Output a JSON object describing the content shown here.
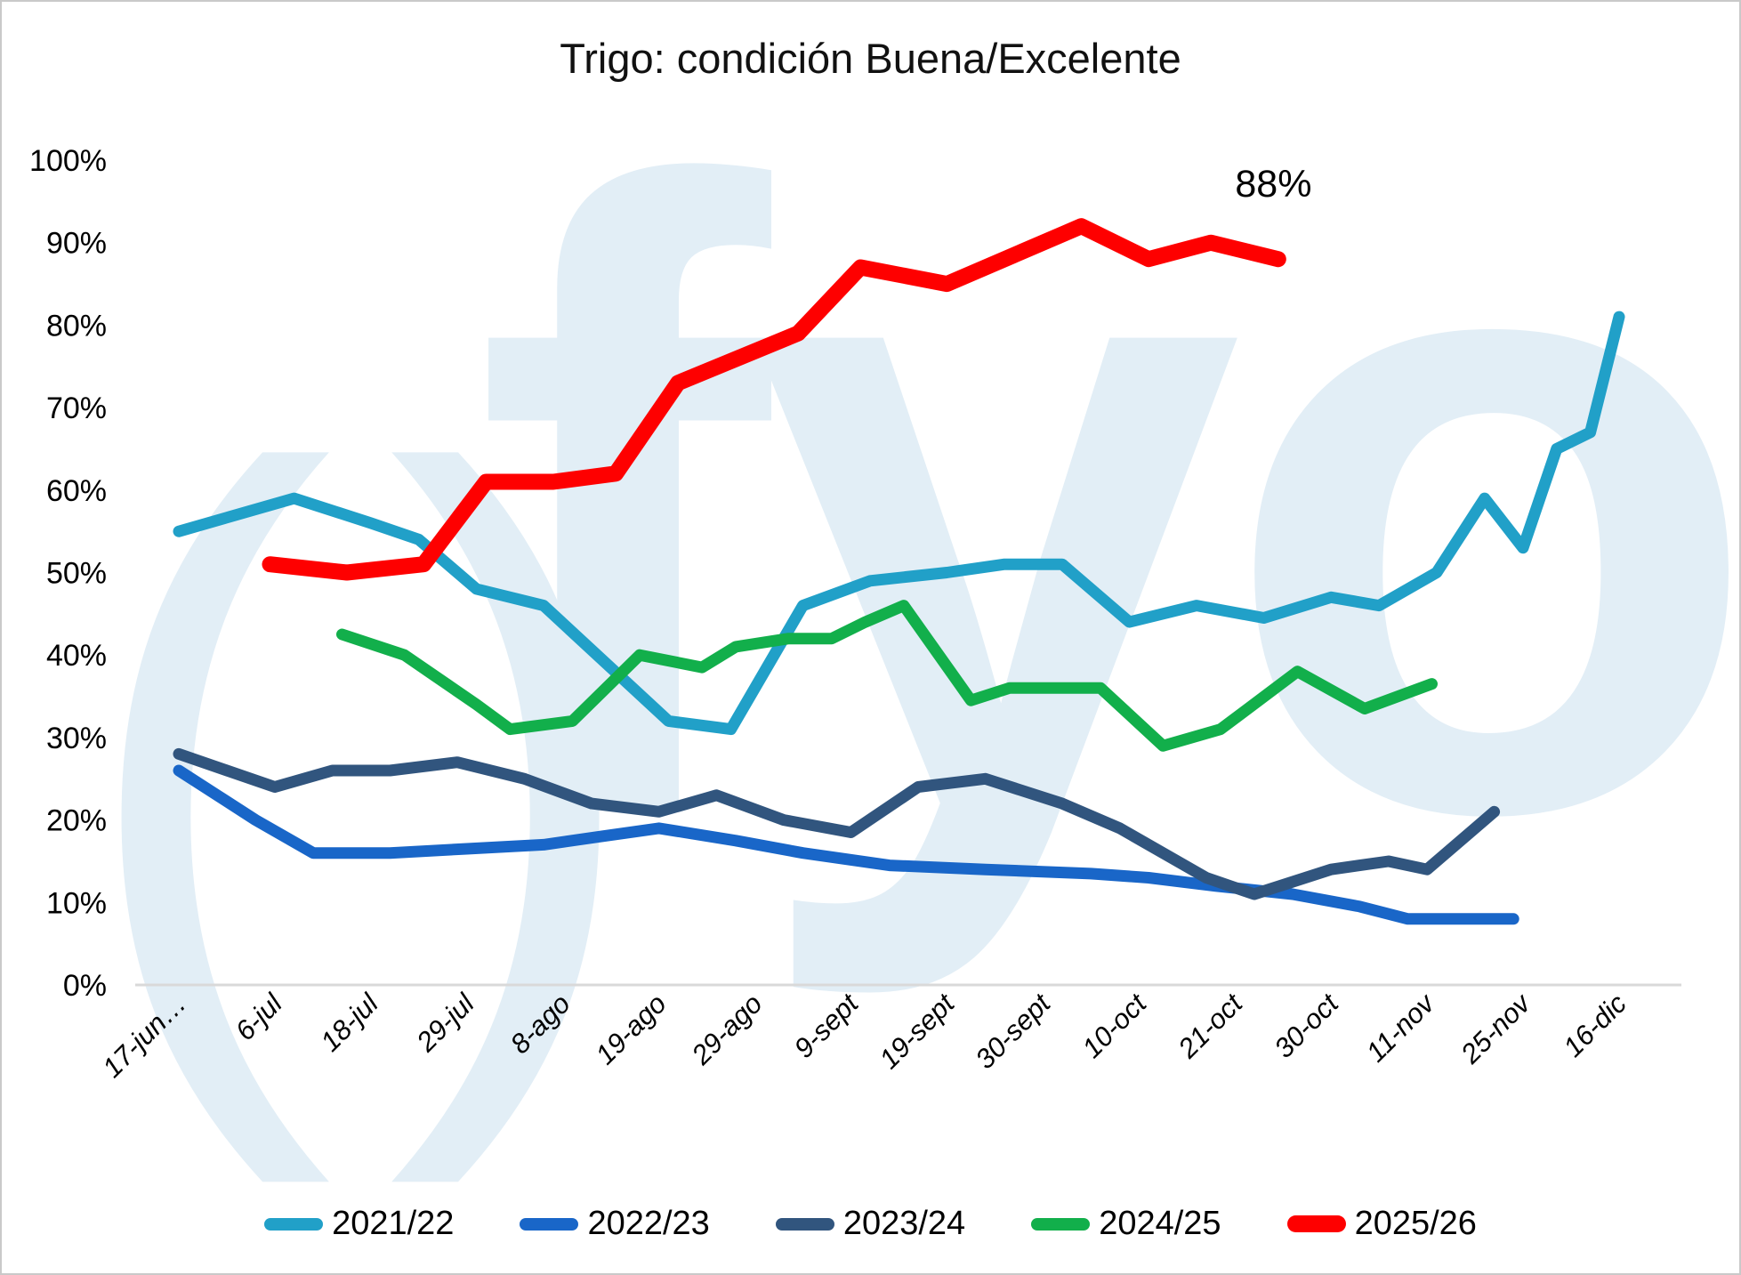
{
  "title": "Trigo: condición Buena/Excelente",
  "watermark": {
    "parens": "()",
    "text": "fyo",
    "color": "#E2EEF6"
  },
  "annotation": {
    "text": "88%",
    "idx": 11.4,
    "pct": 95.6
  },
  "colors": {
    "axis_line": "#D9D9D9",
    "text": "#000000",
    "s2021": "#21A0C8",
    "s2022": "#1966C8",
    "s2023": "#31557E",
    "s2024": "#12AF4B",
    "s2025": "#FE0000"
  },
  "chart_data": {
    "type": "line",
    "title": "Trigo: condición Buena/Excelente",
    "xlabel": "",
    "ylabel": "",
    "ylim": [
      0,
      100
    ],
    "y_tick_step": 10,
    "y_tick_labels": [
      "0%",
      "10%",
      "20%",
      "30%",
      "40%",
      "50%",
      "60%",
      "70%",
      "80%",
      "90%",
      "100%"
    ],
    "grid": false,
    "legend_position": "bottom",
    "categories": [
      "17-jun…",
      "6-jul",
      "18-jul",
      "29-jul",
      "8-ago",
      "19-ago",
      "29-ago",
      "9-sept",
      "19-sept",
      "30-sept",
      "10-oct",
      "21-oct",
      "30-oct",
      "11-nov",
      "25-nov",
      "16-dic"
    ],
    "series": [
      {
        "name": "2021/22",
        "color": "#21A0C8",
        "width": 13,
        "points": [
          [
            0,
            55
          ],
          [
            1.2,
            59
          ],
          [
            2,
            56
          ],
          [
            2.5,
            54
          ],
          [
            3.1,
            48
          ],
          [
            3.8,
            46
          ],
          [
            5.1,
            32
          ],
          [
            5.75,
            31
          ],
          [
            6.5,
            46
          ],
          [
            7.2,
            49
          ],
          [
            8,
            50
          ],
          [
            8.6,
            51
          ],
          [
            9.2,
            51
          ],
          [
            9.9,
            44
          ],
          [
            10.6,
            46
          ],
          [
            11.3,
            44.5
          ],
          [
            12,
            47
          ],
          [
            12.5,
            46
          ],
          [
            13.1,
            50
          ],
          [
            13.6,
            59
          ],
          [
            14,
            53
          ],
          [
            14.35,
            65
          ],
          [
            14.7,
            67
          ],
          [
            15,
            81
          ]
        ]
      },
      {
        "name": "2022/23",
        "color": "#1966C8",
        "width": 13,
        "points": [
          [
            0,
            26
          ],
          [
            0.8,
            20
          ],
          [
            1.4,
            16
          ],
          [
            2.2,
            16
          ],
          [
            3,
            16.5
          ],
          [
            3.8,
            17
          ],
          [
            4.4,
            18
          ],
          [
            5,
            19
          ],
          [
            5.8,
            17.5
          ],
          [
            6.5,
            16
          ],
          [
            7.4,
            14.5
          ],
          [
            8.4,
            14
          ],
          [
            9.5,
            13.5
          ],
          [
            10.1,
            13
          ],
          [
            10.8,
            12
          ],
          [
            11.6,
            11
          ],
          [
            12.3,
            9.5
          ],
          [
            12.8,
            8
          ],
          [
            13.4,
            8
          ],
          [
            13.9,
            8
          ]
        ]
      },
      {
        "name": "2023/24",
        "color": "#31557E",
        "width": 13,
        "points": [
          [
            0,
            28
          ],
          [
            1,
            24
          ],
          [
            1.6,
            26
          ],
          [
            2.2,
            26
          ],
          [
            2.9,
            27
          ],
          [
            3.6,
            25
          ],
          [
            4.3,
            22
          ],
          [
            5,
            21
          ],
          [
            5.6,
            23
          ],
          [
            6.3,
            20
          ],
          [
            7,
            18.5
          ],
          [
            7.7,
            24
          ],
          [
            8.4,
            25
          ],
          [
            9.2,
            22
          ],
          [
            9.8,
            19
          ],
          [
            10.7,
            13
          ],
          [
            11.2,
            11
          ],
          [
            12,
            14
          ],
          [
            12.6,
            15
          ],
          [
            13,
            14
          ],
          [
            13.7,
            21
          ]
        ]
      },
      {
        "name": "2024/25",
        "color": "#12AF4B",
        "width": 13,
        "points": [
          [
            1.7,
            42.5
          ],
          [
            2.35,
            40
          ],
          [
            3.1,
            34
          ],
          [
            3.45,
            31
          ],
          [
            4.1,
            32
          ],
          [
            4.8,
            40
          ],
          [
            5.45,
            38.5
          ],
          [
            5.8,
            41
          ],
          [
            6.35,
            42
          ],
          [
            6.8,
            42
          ],
          [
            7.15,
            44
          ],
          [
            7.55,
            46
          ],
          [
            8.25,
            34.5
          ],
          [
            8.65,
            36
          ],
          [
            9.6,
            36
          ],
          [
            10.25,
            29
          ],
          [
            10.85,
            31
          ],
          [
            11.65,
            38
          ],
          [
            12.35,
            33.5
          ],
          [
            13.05,
            36.5
          ]
        ]
      },
      {
        "name": "2025/26",
        "color": "#FE0000",
        "width": 18,
        "points": [
          [
            0.95,
            51
          ],
          [
            1.75,
            50
          ],
          [
            2.55,
            51
          ],
          [
            3.2,
            61
          ],
          [
            3.9,
            61
          ],
          [
            4.55,
            62
          ],
          [
            5.2,
            73
          ],
          [
            6.45,
            79
          ],
          [
            7.1,
            87
          ],
          [
            8,
            85
          ],
          [
            9.4,
            92
          ],
          [
            10.1,
            88
          ],
          [
            10.75,
            90
          ],
          [
            11.45,
            88
          ]
        ]
      }
    ],
    "annotations": [
      {
        "text": "88%",
        "series": "2025/26",
        "value": 88
      }
    ]
  }
}
